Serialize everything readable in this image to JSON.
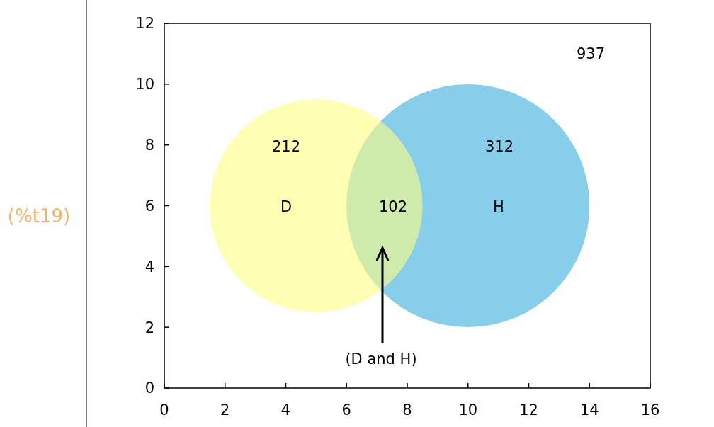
{
  "chart_data": {
    "type": "bubble",
    "xlim": [
      0,
      16
    ],
    "ylim": [
      0,
      12
    ],
    "xticks": [
      0,
      2,
      4,
      6,
      8,
      10,
      12,
      14,
      16
    ],
    "yticks": [
      0,
      2,
      4,
      6,
      8,
      10,
      12
    ],
    "series": [
      {
        "color": "#87ceeb",
        "x": [
          10
        ],
        "values": [
          6
        ],
        "sizes": [
          1
        ]
      },
      {
        "color": "#ffff80",
        "x": [
          5
        ],
        "values": [
          6
        ],
        "sizes": [
          0.766
        ]
      }
    ],
    "annotations": [
      "(%t19)",
      "937",
      "212",
      "312",
      "D",
      "H",
      "102",
      "(D and H)"
    ]
  }
}
